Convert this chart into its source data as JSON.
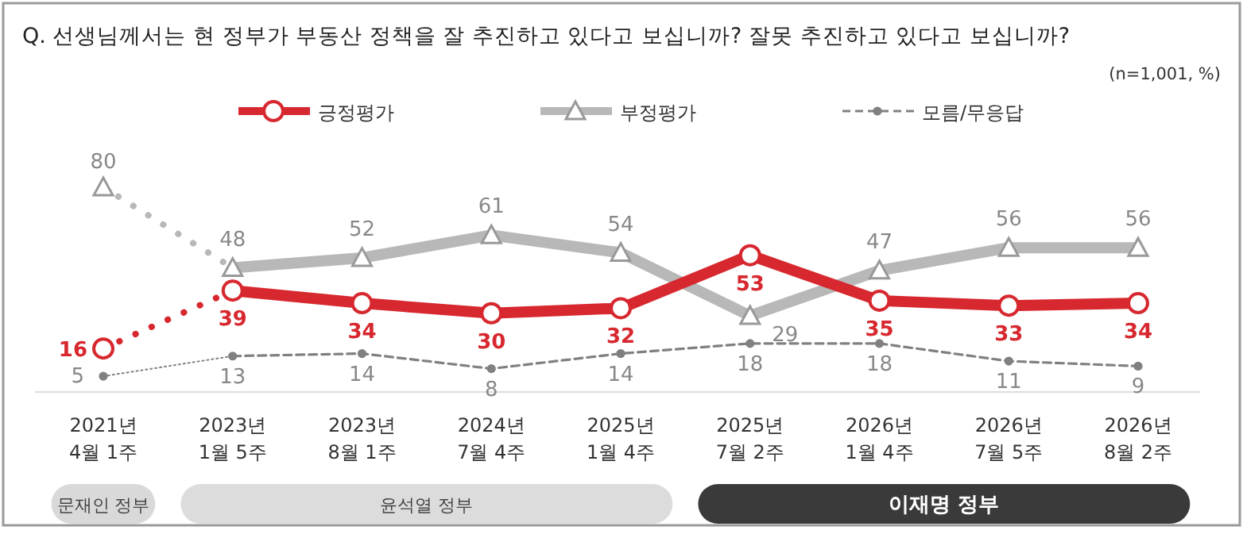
{
  "chart_data": {
    "type": "line",
    "title": "Q. 선생님께서는 현 정부가 부동산 정책을 잘 추진하고 있다고 보십니까? 잘못 추진하고 있다고 보십니까?",
    "annotations": [
      "(n=1,001, %)",
      "문재인 정부",
      "윤석열 정부",
      "이재명 정부"
    ],
    "categories": [
      "2021년 4월 1주",
      "2023년 1월 5주",
      "2023년 8월 1주",
      "2024년 7월 4주",
      "2025년 1월 4주",
      "2025년 7월 2주",
      "2026년 1월 4주",
      "2026년 7월 5주",
      "2026년 8월 2주"
    ],
    "legend": "top",
    "line_style": "solid",
    "series": [
      {
        "color": "#d7282f",
        "values": [
          16,
          39,
          null,
          null,
          null,
          null,
          null,
          null,
          null
        ],
        "value_labels": [
          "16",
          null,
          null,
          null,
          null,
          null,
          null,
          null,
          null
        ],
        "line_style": "dotted",
        "marker": "circle"
      },
      {
        "name": "긍정평가",
        "color": "#d7282f",
        "values": [
          null,
          39,
          34,
          30,
          32,
          53,
          35,
          33,
          34
        ],
        "value_labels": [
          null,
          "39",
          "34",
          "30",
          "32",
          "53",
          "35",
          "33",
          "34"
        ],
        "marker": "circle"
      },
      {
        "color": "#b8b8b8",
        "values": [
          80,
          48,
          null,
          null,
          null,
          null,
          null,
          null,
          null
        ],
        "value_labels": [
          "80",
          null,
          null,
          null,
          null,
          null,
          null,
          null,
          null
        ],
        "line_style": "dotted",
        "marker": "triangle"
      },
      {
        "name": "부정평가",
        "color": "#b8b8b8",
        "values": [
          null,
          48,
          52,
          61,
          54,
          29,
          47,
          56,
          56
        ],
        "value_labels": [
          null,
          "48",
          "52",
          "61",
          "54",
          "29",
          "47",
          "56",
          "56"
        ],
        "marker": "triangle"
      },
      {
        "color": "#808080",
        "values": [
          5,
          13,
          null,
          null,
          null,
          null,
          null,
          null,
          null
        ],
        "value_labels": [
          "5",
          null,
          null,
          null,
          null,
          null,
          null,
          null,
          null
        ],
        "line_style": "dotted",
        "marker": "circle"
      },
      {
        "name": "모름/무응답",
        "color": "#808080",
        "values": [
          null,
          13,
          14,
          8,
          14,
          18,
          18,
          11,
          9
        ],
        "value_labels": [
          null,
          "13",
          "14",
          "8",
          "14",
          "18",
          "18",
          "11",
          "9"
        ],
        "line_style": "dashed",
        "marker": "circle"
      }
    ],
    "data_labels": false
  }
}
